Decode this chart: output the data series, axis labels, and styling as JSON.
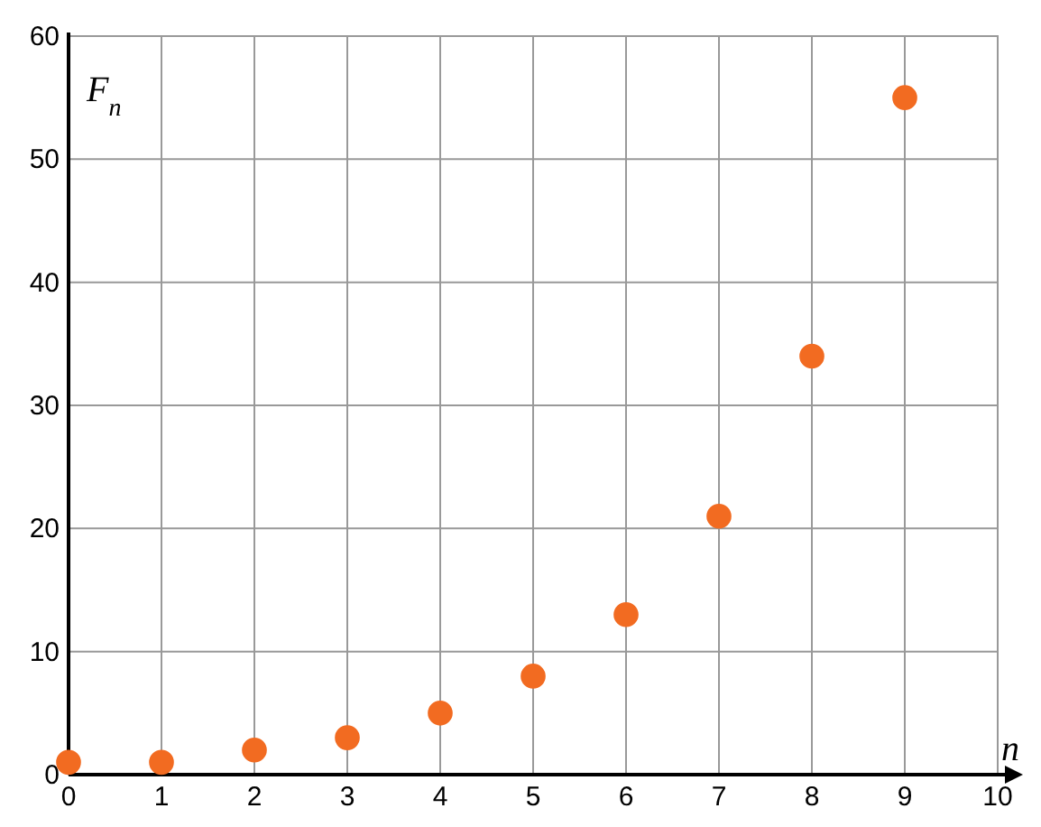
{
  "chart_data": {
    "type": "scatter",
    "xlabel": "n",
    "ylabel": "F$_{n}$",
    "x": [
      0,
      1,
      2,
      3,
      4,
      5,
      6,
      7,
      8,
      9
    ],
    "series": [
      {
        "color": "#f26b21",
        "values": [
          1,
          1,
          2,
          3,
          5,
          8,
          13,
          21,
          34,
          55
        ]
      }
    ],
    "xlim": [
      0,
      10
    ],
    "ylim": [
      0,
      60
    ],
    "xticks": [
      0,
      1,
      2,
      3,
      4,
      5,
      6,
      7,
      8,
      9,
      10
    ],
    "yticks": [
      0,
      10,
      20,
      30,
      40,
      50,
      60
    ],
    "grid": true,
    "marker": "circle"
  }
}
